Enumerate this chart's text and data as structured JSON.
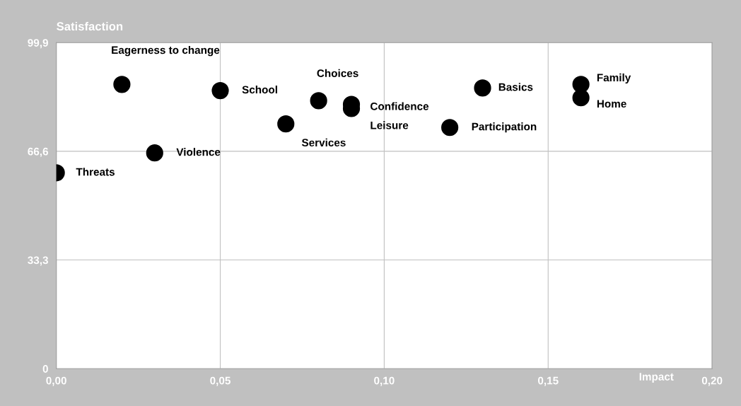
{
  "chart_data": {
    "type": "scatter",
    "xlabel": "Impact",
    "ylabel": "Satisfaction",
    "x": [
      0.0,
      0.02,
      0.03,
      0.05,
      0.07,
      0.08,
      0.09,
      0.09,
      0.12,
      0.13,
      0.16,
      0.16
    ],
    "values": [
      60.0,
      87.1,
      66.1,
      85.2,
      75.0,
      82.1,
      81.0,
      79.7,
      73.9,
      86.0,
      87.1,
      83.0
    ],
    "value_labels": [
      "Threats",
      "Eagerness to change",
      "Violence",
      "School",
      "Services",
      "Choices",
      "Confidence",
      "Leisure",
      "Participation",
      "Basics",
      "Family",
      "Home"
    ],
    "color": "#000000",
    "marker": "circle",
    "xlim": [
      0,
      0.2
    ],
    "ylim": [
      0,
      99.9
    ],
    "xticks": [
      {
        "value": 0,
        "label": "0,00"
      },
      {
        "value": 0.05,
        "label": "0,05"
      },
      {
        "value": 0.1,
        "label": "0,10"
      },
      {
        "value": 0.15,
        "label": "0,15"
      },
      {
        "value": 0.2,
        "label": "0,20"
      }
    ],
    "yticks": [
      0,
      {
        "value": 33.3,
        "label": "33,3"
      },
      {
        "value": 66.6,
        "label": "66,6"
      },
      {
        "value": 99.9,
        "label": "99,9"
      }
    ],
    "grid": true
  }
}
